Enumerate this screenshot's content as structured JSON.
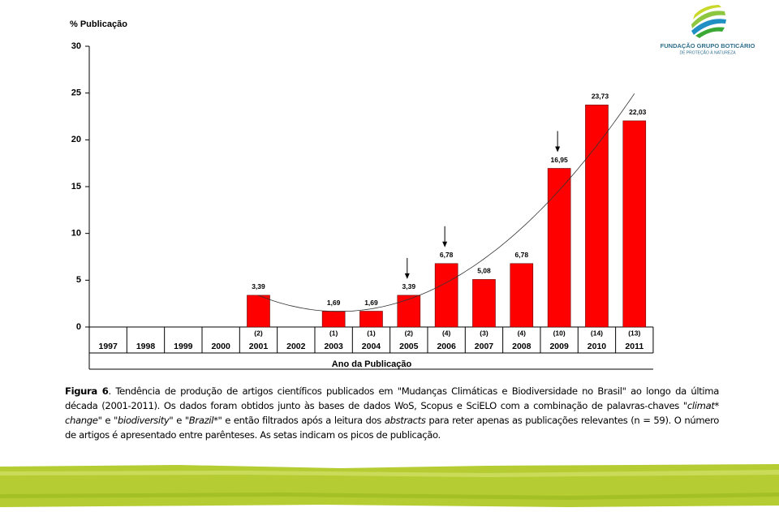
{
  "chart_data": {
    "type": "bar",
    "y_axis_title": "% Publicação",
    "x_axis_title": "Ano da Publicação",
    "categories": [
      "1997",
      "1998",
      "1999",
      "2000",
      "2001",
      "2002",
      "2003",
      "2004",
      "2005",
      "2006",
      "2007",
      "2008",
      "2009",
      "2010",
      "2011"
    ],
    "values": [
      null,
      null,
      null,
      null,
      3.39,
      null,
      1.69,
      1.69,
      3.39,
      6.78,
      5.08,
      6.78,
      16.95,
      23.73,
      22.03
    ],
    "value_labels": [
      null,
      null,
      null,
      null,
      "3,39",
      null,
      "1,69",
      "1,69",
      "3,39",
      "6,78",
      "5,08",
      "6,78",
      "16,95",
      "23,73",
      "22,03"
    ],
    "article_counts": [
      null,
      null,
      null,
      null,
      "(2)",
      null,
      "(1)",
      "(1)",
      "(2)",
      "(4)",
      "(3)",
      "(4)",
      "(10)",
      "(14)",
      "(13)"
    ],
    "peak_markers": [
      "2005",
      "2006",
      "2009"
    ],
    "trendline": true,
    "color": "#ff0000",
    "ylim": [
      0,
      30
    ],
    "yticks": [
      0,
      5,
      10,
      15,
      20,
      25,
      30
    ]
  },
  "logo": {
    "name": "FUNDAÇÃO GRUPO BOTICÁRIO",
    "tagline": "DE PROTEÇÃO À NATUREZA"
  },
  "caption": [
    {
      "text": "Figura 6",
      "style": "bold"
    },
    {
      "text": ". Tendência de produção de artigos científicos publicados em \"Mudanças Climáticas e Biodiversidade no Brasil\" ao longo da última década (2001-2011). Os dados foram obtidos junto às bases de dados WoS, Scopus e SciELO com a combinação de palavras-chaves ",
      "style": "normal"
    },
    {
      "text": "\"climat* change\"",
      "style": "italic"
    },
    {
      "text": " e ",
      "style": "normal"
    },
    {
      "text": "\"biodiversity\"",
      "style": "italic"
    },
    {
      "text": " e ",
      "style": "normal"
    },
    {
      "text": "\"Brazil*\"",
      "style": "italic"
    },
    {
      "text": " e então filtrados após a leitura dos ",
      "style": "normal"
    },
    {
      "text": "abstracts",
      "style": "italic"
    },
    {
      "text": " para reter apenas as publicações relevantes (n = 59). O número de artigos é apresentado entre parênteses. As setas indicam os picos de publicação.",
      "style": "normal"
    }
  ]
}
